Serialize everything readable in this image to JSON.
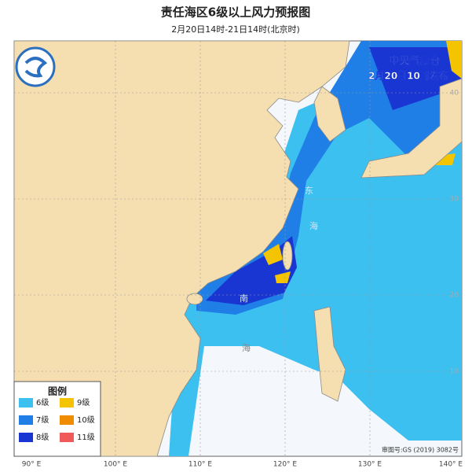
{
  "title": "责任海区6级以上风力预报图",
  "subtitle": "2月20日14时-21日14时(北京时)",
  "issuer": "中央气象台",
  "issued": "2月20日10时发布",
  "legend": {
    "title": "图例",
    "items": [
      {
        "label": "6级",
        "color": "#3cc0f0"
      },
      {
        "label": "9级",
        "color": "#f5c400"
      },
      {
        "label": "7级",
        "color": "#1f7fe6"
      },
      {
        "label": "10级",
        "color": "#f08c00"
      },
      {
        "label": "8级",
        "color": "#1a36d2"
      },
      {
        "label": "11级",
        "color": "#f05a5a"
      }
    ]
  },
  "longitude_labels": [
    "90° E",
    "100° E",
    "110° E",
    "120° E",
    "130° E",
    "140° E"
  ],
  "latitude_labels": [
    "40",
    "30",
    "20",
    "10"
  ],
  "sea_labels": [
    "东",
    "海",
    "南",
    "海"
  ],
  "approval": "审图号:GS (2019) 3082号"
}
